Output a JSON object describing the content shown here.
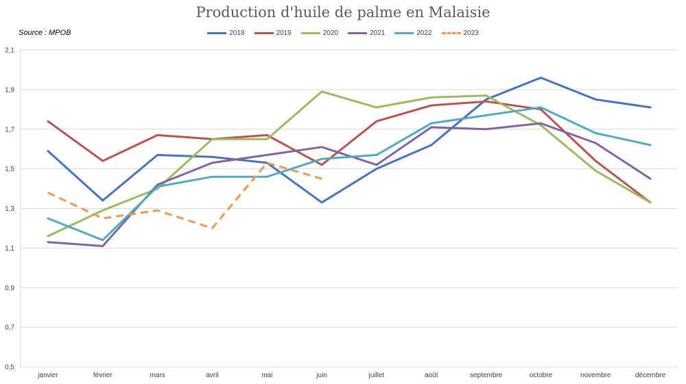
{
  "source": "Source : MPOB",
  "chart_data": {
    "type": "line",
    "title": "Production d'huile de palme en Malaisie",
    "xlabel": "",
    "ylabel": "",
    "categories": [
      "janvier",
      "février",
      "mars",
      "avril",
      "mai",
      "juin",
      "juillet",
      "août",
      "septembre",
      "octobre",
      "novembre",
      "décembre"
    ],
    "ylim": [
      0.5,
      2.1
    ],
    "yticks": [
      "0,5",
      "0,7",
      "0,9",
      "1,1",
      "1,3",
      "1,5",
      "1,7",
      "1,9",
      "2,1"
    ],
    "ytick_values": [
      0.5,
      0.7,
      0.9,
      1.1,
      1.3,
      1.5,
      1.7,
      1.9,
      2.1
    ],
    "grid": true,
    "legend_position": "top",
    "series": [
      {
        "name": "2018",
        "color": "#4472C4",
        "dashed": false,
        "values": [
          1.59,
          1.34,
          1.57,
          1.56,
          1.53,
          1.33,
          1.5,
          1.62,
          1.85,
          1.96,
          1.85,
          1.81
        ]
      },
      {
        "name": "2019",
        "color": "#C0504D",
        "dashed": false,
        "values": [
          1.74,
          1.54,
          1.67,
          1.65,
          1.67,
          1.52,
          1.74,
          1.82,
          1.84,
          1.8,
          1.54,
          1.33
        ]
      },
      {
        "name": "2020",
        "color": "#9BBB59",
        "dashed": false,
        "values": [
          1.16,
          1.29,
          1.4,
          1.65,
          1.65,
          1.89,
          1.81,
          1.86,
          1.87,
          1.72,
          1.49,
          1.33
        ]
      },
      {
        "name": "2021",
        "color": "#8064A2",
        "dashed": false,
        "values": [
          1.13,
          1.11,
          1.42,
          1.53,
          1.57,
          1.61,
          1.52,
          1.71,
          1.7,
          1.73,
          1.63,
          1.45
        ]
      },
      {
        "name": "2022",
        "color": "#4BACC6",
        "dashed": false,
        "values": [
          1.25,
          1.14,
          1.41,
          1.46,
          1.46,
          1.55,
          1.57,
          1.73,
          1.77,
          1.81,
          1.68,
          1.62
        ]
      },
      {
        "name": "2023",
        "color": "#F79646",
        "dashed": true,
        "values": [
          1.38,
          1.25,
          1.29,
          1.2,
          1.53,
          1.45,
          null,
          null,
          null,
          null,
          null,
          null
        ]
      }
    ]
  }
}
